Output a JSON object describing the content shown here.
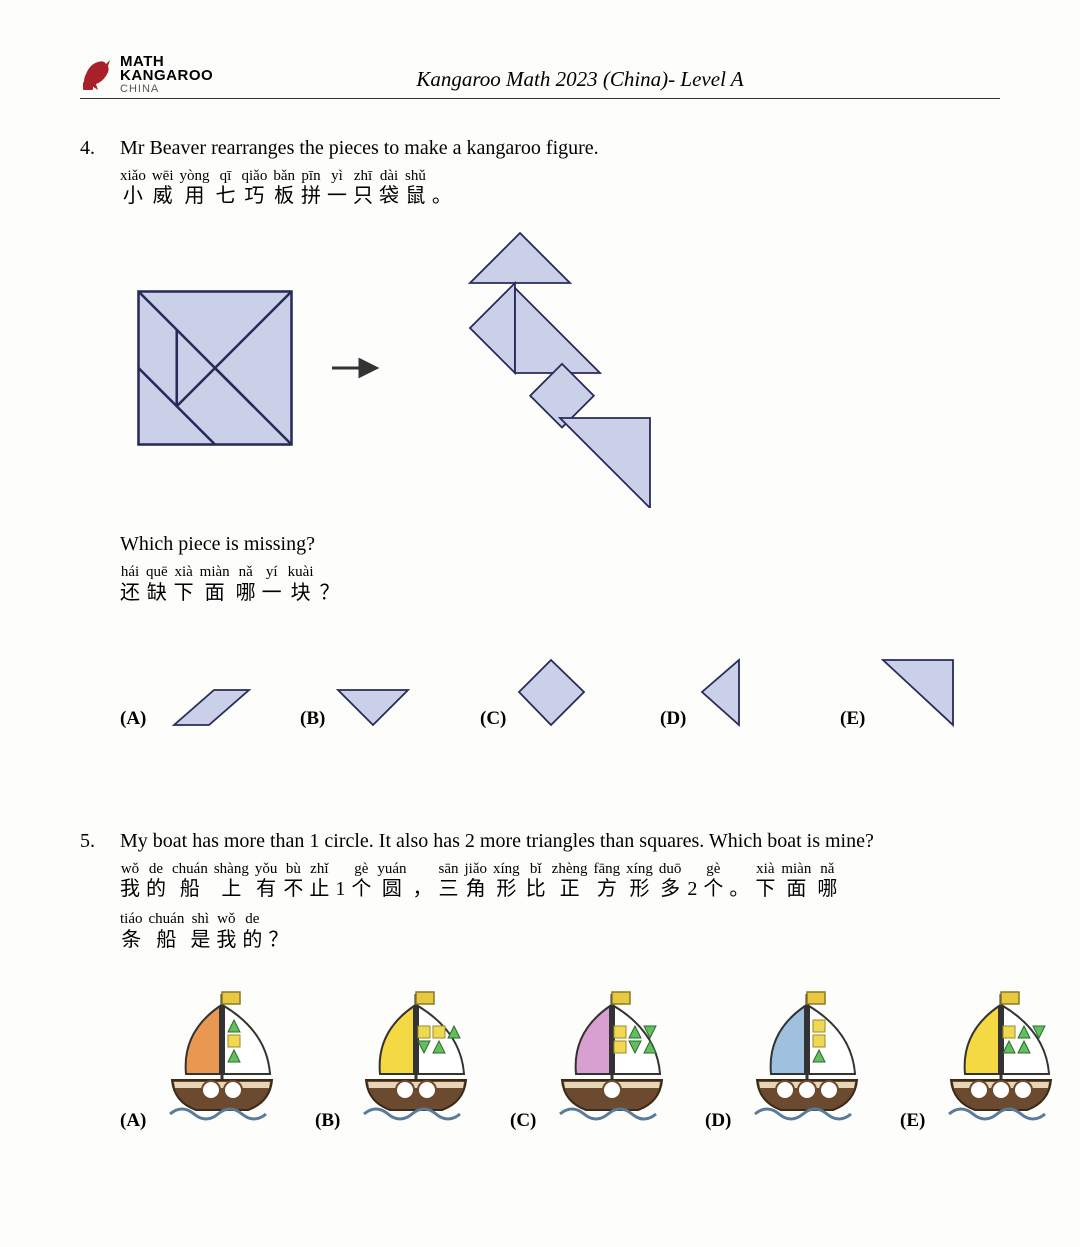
{
  "header": {
    "logo_l1": "MATH",
    "logo_l2": "KANGAROO",
    "logo_l3": "CHINA",
    "title": "Kangaroo Math 2023 (China)- Level A"
  },
  "colors": {
    "tangram_fill": "#c9d0e8",
    "tangram_stroke": "#2a2a5a",
    "logo_red": "#a8202a",
    "boat_hull_brown": "#6b4a2f",
    "boat_hull_light": "#e8d5b5",
    "boat_wave": "#5a7a9a",
    "boat_circle": "#ffffff",
    "sail_yellow": "#f5d942",
    "sail_orange": "#e89850",
    "sail_pink": "#d8a0d0",
    "sail_blue": "#a0c0e0",
    "flag_yellow": "#e8c840",
    "shape_green": "#60c060",
    "shape_yellow": "#f0d850"
  },
  "q4": {
    "number": "4.",
    "text_en": "Mr Beaver rearranges the pieces to make a kangaroo figure.",
    "ruby1": [
      {
        "py": "xiǎo",
        "ch": "小"
      },
      {
        "py": "wēi",
        "ch": "威"
      },
      {
        "py": "yòng",
        "ch": "用"
      },
      {
        "py": "qī",
        "ch": "七"
      },
      {
        "py": "qiǎo",
        "ch": "巧"
      },
      {
        "py": "bǎn",
        "ch": "板"
      },
      {
        "py": "pīn",
        "ch": "拼"
      },
      {
        "py": "yì",
        "ch": "一"
      },
      {
        "py": "zhī",
        "ch": "只"
      },
      {
        "py": "dài",
        "ch": "袋"
      },
      {
        "py": "shǔ",
        "ch": "鼠"
      },
      {
        "py": "",
        "ch": "。",
        "punct": true
      }
    ],
    "text_en2": "Which piece is missing?",
    "ruby2": [
      {
        "py": "hái",
        "ch": "还"
      },
      {
        "py": "quē",
        "ch": "缺"
      },
      {
        "py": "xià",
        "ch": "下"
      },
      {
        "py": "miàn",
        "ch": "面"
      },
      {
        "py": "nǎ",
        "ch": "哪"
      },
      {
        "py": "yí",
        "ch": "一"
      },
      {
        "py": "kuài",
        "ch": "块"
      },
      {
        "py": "",
        "ch": "？",
        "punct": true
      }
    ],
    "answers": [
      "(A)",
      "(B)",
      "(C)",
      "(D)",
      "(E)"
    ]
  },
  "q5": {
    "number": "5.",
    "text_en": "My boat has more than 1 circle. It also has 2 more triangles than squares. Which boat is mine?",
    "ruby1": [
      {
        "py": "wǒ",
        "ch": "我"
      },
      {
        "py": "de",
        "ch": "的"
      },
      {
        "py": "chuán",
        "ch": "船"
      },
      {
        "py": "shàng",
        "ch": "上"
      },
      {
        "py": "yǒu",
        "ch": "有"
      },
      {
        "py": "bù",
        "ch": "不"
      },
      {
        "py": "zhǐ",
        "ch": "止"
      },
      {
        "py": "",
        "ch": "1",
        "punct": true
      },
      {
        "py": "gè",
        "ch": "个"
      },
      {
        "py": "yuán",
        "ch": "圆"
      },
      {
        "py": "",
        "ch": "，",
        "punct": true
      },
      {
        "py": "sān",
        "ch": "三"
      },
      {
        "py": "jiǎo",
        "ch": "角"
      },
      {
        "py": "xíng",
        "ch": "形"
      },
      {
        "py": "bǐ",
        "ch": "比"
      },
      {
        "py": "zhèng",
        "ch": "正"
      },
      {
        "py": "fāng",
        "ch": "方"
      },
      {
        "py": "xíng",
        "ch": "形"
      },
      {
        "py": "duō",
        "ch": "多"
      },
      {
        "py": "",
        "ch": "2",
        "punct": true
      },
      {
        "py": "gè",
        "ch": "个"
      },
      {
        "py": "",
        "ch": "。",
        "punct": true
      },
      {
        "py": "xià",
        "ch": "下"
      },
      {
        "py": "miàn",
        "ch": "面"
      },
      {
        "py": "nǎ",
        "ch": "哪"
      }
    ],
    "ruby2": [
      {
        "py": "tiáo",
        "ch": "条"
      },
      {
        "py": "chuán",
        "ch": "船"
      },
      {
        "py": "shì",
        "ch": "是"
      },
      {
        "py": "wǒ",
        "ch": "我"
      },
      {
        "py": "de",
        "ch": "的"
      },
      {
        "py": "",
        "ch": "？",
        "punct": true
      }
    ],
    "answers": [
      "(A)",
      "(B)",
      "(C)",
      "(D)",
      "(E)"
    ],
    "boats": [
      {
        "sail_left": "#e89850",
        "sail_right": "#ffffff",
        "circles": 2,
        "sail_shapes": [
          {
            "t": "tri",
            "c": "#60c060"
          },
          {
            "t": "sq",
            "c": "#f0d850"
          },
          {
            "t": "tri",
            "c": "#60c060"
          }
        ]
      },
      {
        "sail_left": "#f5d942",
        "sail_right": "#ffffff",
        "circles": 2,
        "sail_shapes": [
          {
            "t": "sq",
            "c": "#f0d850"
          },
          {
            "t": "sq",
            "c": "#f0d850"
          },
          {
            "t": "tri",
            "c": "#60c060"
          },
          {
            "t": "tri_d",
            "c": "#60c060"
          },
          {
            "t": "tri",
            "c": "#60c060"
          }
        ]
      },
      {
        "sail_left": "#d8a0d0",
        "sail_right": "#ffffff",
        "circles": 1,
        "sail_shapes": [
          {
            "t": "sq",
            "c": "#f0d850"
          },
          {
            "t": "tri",
            "c": "#60c060"
          },
          {
            "t": "tri_d",
            "c": "#60c060"
          },
          {
            "t": "sq",
            "c": "#f0d850"
          },
          {
            "t": "tri_d",
            "c": "#60c060"
          },
          {
            "t": "tri",
            "c": "#60c060"
          }
        ]
      },
      {
        "sail_left": "#a0c0e0",
        "sail_right": "#ffffff",
        "circles": 3,
        "sail_shapes": [
          {
            "t": "sq",
            "c": "#f0d850"
          },
          {
            "t": "sq",
            "c": "#f0d850"
          },
          {
            "t": "tri",
            "c": "#60c060"
          }
        ]
      },
      {
        "sail_left": "#f5d942",
        "sail_right": "#ffffff",
        "circles": 3,
        "sail_shapes": [
          {
            "t": "sq",
            "c": "#f0d850"
          },
          {
            "t": "tri",
            "c": "#60c060"
          },
          {
            "t": "tri_d",
            "c": "#60c060"
          },
          {
            "t": "tri",
            "c": "#60c060"
          },
          {
            "t": "tri",
            "c": "#60c060"
          }
        ]
      }
    ]
  }
}
